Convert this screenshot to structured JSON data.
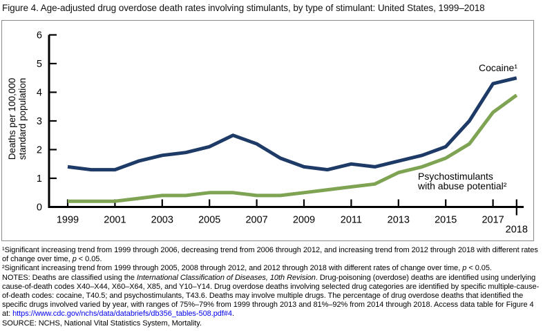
{
  "figure": {
    "title": "Figure 4. Age-adjusted drug overdose death rates involving stimulants, by type of stimulant: United States, 1999–2018"
  },
  "chart_data": {
    "type": "line",
    "title": "Figure 4. Age-adjusted drug overdose death rates involving stimulants, by type of stimulant: United States, 1999–2018",
    "xlabel": "",
    "ylabel_lines": [
      "Deaths per 100,000",
      "standard population"
    ],
    "ylim": [
      0,
      6
    ],
    "yticks": [
      0,
      1,
      2,
      3,
      4,
      5,
      6
    ],
    "x": [
      1999,
      2000,
      2001,
      2002,
      2003,
      2004,
      2005,
      2006,
      2007,
      2008,
      2009,
      2010,
      2011,
      2012,
      2013,
      2014,
      2015,
      2016,
      2017,
      2018
    ],
    "xtick_years": [
      1999,
      2001,
      2003,
      2005,
      2007,
      2009,
      2011,
      2013,
      2015,
      2017,
      2018
    ],
    "grid": false,
    "legend_position": "inline-labels",
    "series": [
      {
        "key": "cocaine",
        "name": "Cocaine¹",
        "label_lines": [
          "Cocaine¹"
        ],
        "color": "#1e3a67",
        "values": [
          1.4,
          1.3,
          1.3,
          1.6,
          1.8,
          1.9,
          2.1,
          2.5,
          2.2,
          1.7,
          1.4,
          1.3,
          1.5,
          1.4,
          1.6,
          1.8,
          2.1,
          3.0,
          4.3,
          4.5
        ]
      },
      {
        "key": "psychostimulants",
        "name": "Psychostimulants with abuse potential²",
        "label_lines": [
          "Psychostimulants",
          "with abuse potential²"
        ],
        "color": "#7ea352",
        "values": [
          0.2,
          0.2,
          0.2,
          0.3,
          0.4,
          0.4,
          0.5,
          0.5,
          0.4,
          0.4,
          0.5,
          0.6,
          0.7,
          0.8,
          1.2,
          1.4,
          1.7,
          2.2,
          3.3,
          3.9
        ]
      }
    ]
  },
  "footnotes": [
    {
      "parts": [
        {
          "t": "¹Significant increasing trend from 1999 through 2006, decreasing trend from 2006 through 2012, and increasing trend from 2012 through 2018 with different rates of change over time, "
        },
        {
          "t": "p",
          "i": true
        },
        {
          "t": " < 0.05."
        }
      ]
    },
    {
      "parts": [
        {
          "t": "²Significant increasing trend from 1999 through 2005, 2008 through 2012, and 2012 through 2018 with different rates of change over time, "
        },
        {
          "t": "p",
          "i": true
        },
        {
          "t": " < 0.05."
        }
      ]
    },
    {
      "parts": [
        {
          "t": "NOTES: Deaths are classified using the "
        },
        {
          "t": "International Classification of Diseases, 10th Revision",
          "i": true
        },
        {
          "t": ". Drug-poisoning (overdose) deaths are identified using underlying cause-of-death codes X40–X44, X60–X64, X85, and Y10–Y14. Drug overdose deaths involving selected drug categories are identified by specific multiple-cause-of-death codes: cocaine, T40.5; and psychostimulants, T43.6. Deaths may involve multiple drugs. The percentage of drug overdose deaths that identified the specific drugs involved varied by year, with ranges of 75%–79% from 1999 through 2013 and 81%–92% from 2014 through 2018. Access data table for Figure 4 at: "
        },
        {
          "t": "https://www.cdc.gov/nchs/data/databriefs/db356_tables-508.pdf#4",
          "link": true
        },
        {
          "t": "."
        }
      ]
    },
    {
      "parts": [
        {
          "t": "SOURCE: NCHS, National Vital Statistics System, Mortality."
        }
      ]
    }
  ],
  "colors": {
    "cocaine_line": "#1e3a67",
    "psychostimulants_line": "#7ea352",
    "axis": "#000000",
    "chart_border": "#8a8a8a",
    "link": "#0000EE"
  }
}
